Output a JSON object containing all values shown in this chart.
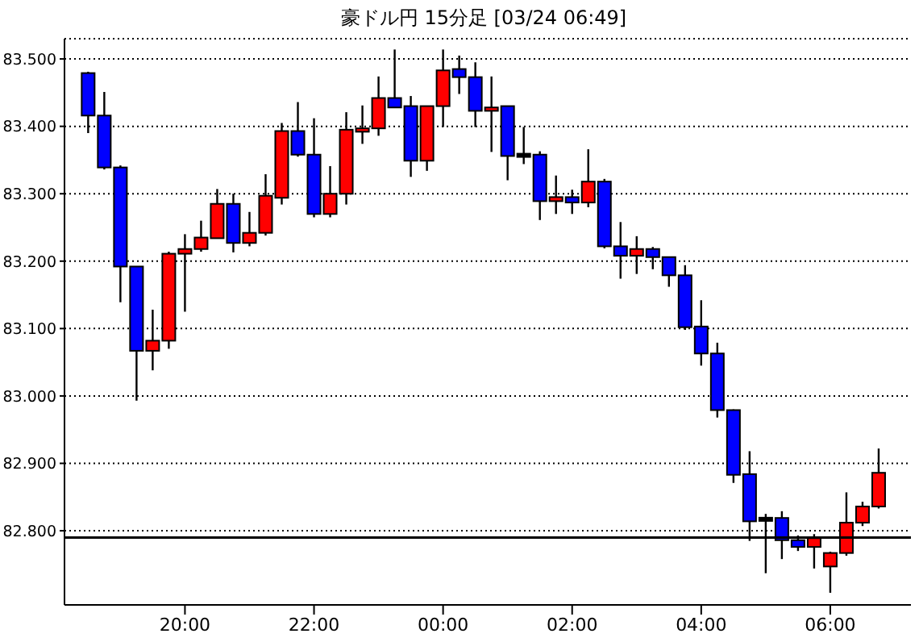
{
  "chart_data": {
    "type": "candlestick",
    "title": "豪ドル円 15分足 [03/24 06:49]",
    "x": [
      "--03-23T18:30",
      "--03-23T18:45",
      "--03-23T19:00",
      "--03-23T19:15",
      "--03-23T19:30",
      "--03-23T19:45",
      "--03-23T20:00",
      "--03-23T20:15",
      "--03-23T20:30",
      "--03-23T20:45",
      "--03-23T21:00",
      "--03-23T21:15",
      "--03-23T21:30",
      "--03-23T21:45",
      "--03-23T22:00",
      "--03-23T22:15",
      "--03-23T22:30",
      "--03-23T22:45",
      "--03-23T23:00",
      "--03-23T23:15",
      "--03-23T23:30",
      "--03-23T23:45",
      "--03-24T00:00",
      "--03-24T00:15",
      "--03-24T00:30",
      "--03-24T00:45",
      "--03-24T01:00",
      "--03-24T01:15",
      "--03-24T01:30",
      "--03-24T01:45",
      "--03-24T02:00",
      "--03-24T02:15",
      "--03-24T02:30",
      "--03-24T02:45",
      "--03-24T03:00",
      "--03-24T03:15",
      "--03-24T03:30",
      "--03-24T03:45",
      "--03-24T04:00",
      "--03-24T04:15",
      "--03-24T04:30",
      "--03-24T04:45",
      "--03-24T05:00",
      "--03-24T05:15",
      "--03-24T05:30",
      "--03-24T05:45",
      "--03-24T06:00",
      "--03-24T06:15",
      "--03-24T06:30",
      "--03-24T06:45"
    ],
    "ohlc": [
      [
        83.479,
        83.481,
        83.39,
        83.416
      ],
      [
        83.416,
        83.451,
        83.336,
        83.339
      ],
      [
        83.339,
        83.342,
        83.139,
        83.192
      ],
      [
        83.192,
        83.192,
        82.993,
        83.067
      ],
      [
        83.067,
        83.128,
        83.038,
        83.082
      ],
      [
        83.082,
        83.214,
        83.07,
        83.211
      ],
      [
        83.211,
        83.24,
        83.125,
        83.218
      ],
      [
        83.218,
        83.26,
        83.214,
        83.235
      ],
      [
        83.234,
        83.307,
        83.234,
        83.285
      ],
      [
        83.285,
        83.3,
        83.213,
        83.227
      ],
      [
        83.227,
        83.273,
        83.222,
        83.242
      ],
      [
        83.242,
        83.329,
        83.238,
        83.297
      ],
      [
        83.294,
        83.405,
        83.284,
        83.393
      ],
      [
        83.393,
        83.436,
        83.355,
        83.358
      ],
      [
        83.358,
        83.412,
        83.265,
        83.27
      ],
      [
        83.27,
        83.341,
        83.265,
        83.3
      ],
      [
        83.3,
        83.421,
        83.284,
        83.395
      ],
      [
        83.392,
        83.431,
        83.374,
        83.397
      ],
      [
        83.397,
        83.474,
        83.386,
        83.442
      ],
      [
        83.442,
        83.514,
        83.428,
        83.428
      ],
      [
        83.43,
        83.445,
        83.325,
        83.349
      ],
      [
        83.349,
        83.43,
        83.334,
        83.43
      ],
      [
        83.43,
        83.514,
        83.399,
        83.483
      ],
      [
        83.485,
        83.505,
        83.448,
        83.473
      ],
      [
        83.473,
        83.495,
        83.399,
        83.423
      ],
      [
        83.423,
        83.474,
        83.362,
        83.428
      ],
      [
        83.43,
        83.43,
        83.32,
        83.356
      ],
      [
        83.357,
        83.399,
        83.344,
        83.357
      ],
      [
        83.358,
        83.363,
        83.261,
        83.289
      ],
      [
        83.289,
        83.327,
        83.27,
        83.295
      ],
      [
        83.295,
        83.306,
        83.27,
        83.287
      ],
      [
        83.287,
        83.366,
        83.28,
        83.318
      ],
      [
        83.318,
        83.322,
        83.219,
        83.222
      ],
      [
        83.222,
        83.258,
        83.174,
        83.208
      ],
      [
        83.208,
        83.237,
        83.181,
        83.218
      ],
      [
        83.218,
        83.221,
        83.188,
        83.206
      ],
      [
        83.206,
        83.206,
        83.162,
        83.179
      ],
      [
        83.179,
        83.194,
        83.098,
        83.102
      ],
      [
        83.103,
        83.142,
        83.045,
        83.063
      ],
      [
        83.063,
        83.079,
        82.968,
        82.979
      ],
      [
        82.979,
        82.98,
        82.871,
        82.883
      ],
      [
        82.884,
        82.918,
        82.785,
        82.814
      ],
      [
        82.817,
        82.825,
        82.737,
        82.817
      ],
      [
        82.819,
        82.829,
        82.758,
        82.786
      ],
      [
        82.786,
        82.793,
        82.77,
        82.776
      ],
      [
        82.776,
        82.795,
        82.744,
        82.789
      ],
      [
        82.747,
        82.769,
        82.708,
        82.767
      ],
      [
        82.767,
        82.857,
        82.763,
        82.812
      ],
      [
        82.812,
        82.843,
        82.807,
        82.836
      ],
      [
        82.836,
        82.922,
        82.833,
        82.886
      ]
    ],
    "colors": [
      "#0000ff",
      "#0000ff",
      "#0000ff",
      "#0000ff",
      "#ff0000",
      "#ff0000",
      "#ff0000",
      "#ff0000",
      "#ff0000",
      "#0000ff",
      "#ff0000",
      "#ff0000",
      "#ff0000",
      "#0000ff",
      "#0000ff",
      "#ff0000",
      "#ff0000",
      "#ff0000",
      "#ff0000",
      "#0000ff",
      "#0000ff",
      "#ff0000",
      "#ff0000",
      "#0000ff",
      "#0000ff",
      "#ff0000",
      "#0000ff",
      "#000000",
      "#0000ff",
      "#ff0000",
      "#0000ff",
      "#ff0000",
      "#0000ff",
      "#0000ff",
      "#ff0000",
      "#0000ff",
      "#0000ff",
      "#0000ff",
      "#0000ff",
      "#0000ff",
      "#0000ff",
      "#0000ff",
      "#000000",
      "#0000ff",
      "#0000ff",
      "#ff0000",
      "#ff0000",
      "#ff0000",
      "#ff0000",
      "#ff0000"
    ],
    "xlim": [
      "--03-23T18:08",
      "--03-24T07:15"
    ],
    "xticks": [
      {
        "value": "--03-23T20:00",
        "label": "20:00"
      },
      {
        "value": "--03-23T22:00",
        "label": "22:00"
      },
      {
        "value": "--03-24T00:00",
        "label": "00:00"
      },
      {
        "value": "--03-24T02:00",
        "label": "02:00"
      },
      {
        "value": "--03-24T04:00",
        "label": "04:00"
      },
      {
        "value": "--03-24T06:00",
        "label": "06:00"
      }
    ],
    "ylim": [
      82.69,
      83.53
    ],
    "yticks": [
      {
        "value": 82.8,
        "label": "82.800"
      },
      {
        "value": 82.9,
        "label": "82.900"
      },
      {
        "value": 83.0,
        "label": "83.000"
      },
      {
        "value": 83.1,
        "label": "83.100"
      },
      {
        "value": 83.2,
        "label": "83.200"
      },
      {
        "value": 83.3,
        "label": "83.300"
      },
      {
        "value": 83.4,
        "label": "83.400"
      },
      {
        "value": 83.5,
        "label": "83.500"
      }
    ],
    "grid": "y",
    "ref_lines": [
      {
        "axis": "y",
        "value": 82.79,
        "color": "#000000"
      }
    ]
  }
}
